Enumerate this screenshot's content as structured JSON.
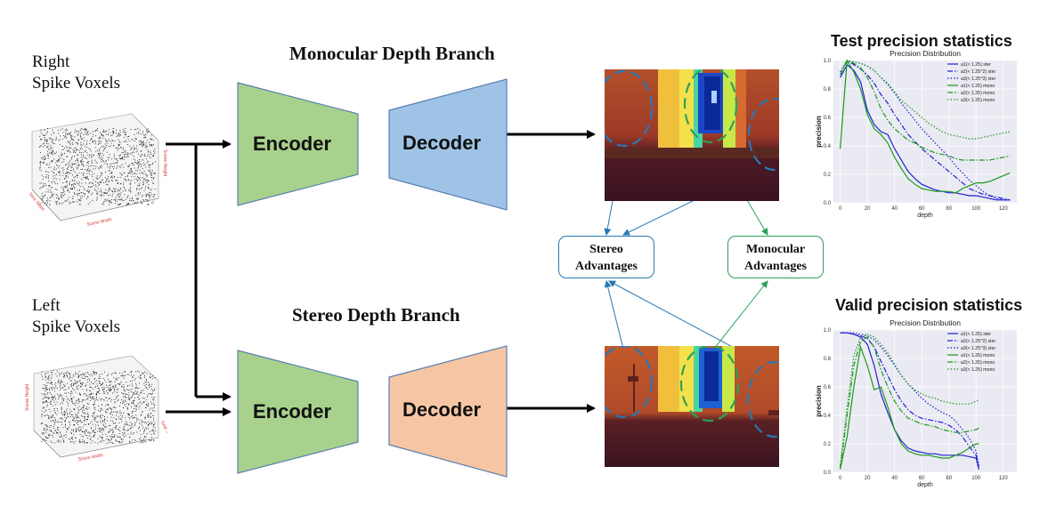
{
  "inputs": {
    "right": {
      "line1": "Right",
      "line2": "Spike Voxels"
    },
    "left": {
      "line1": "Left",
      "line2": "Spike Voxels"
    },
    "axis_labels": {
      "width": "Scene Width",
      "height": "Scene Height",
      "depth": "Time Steps"
    }
  },
  "monocular_branch": {
    "title": "Monocular Depth Branch",
    "encoder": "Encoder",
    "decoder": "Decoder",
    "encoder_color": "#a7d18c",
    "decoder_color": "#9ec3e6"
  },
  "stereo_branch": {
    "title": "Stereo Depth Branch",
    "encoder": "Encoder",
    "decoder": "Decoder",
    "encoder_color": "#a7d18c",
    "decoder_color": "#f6c6a4"
  },
  "advantages": {
    "stereo": {
      "line1": "Stereo",
      "line2": "Advantages",
      "color": "#2878b4"
    },
    "monocular": {
      "line1": "Monocular",
      "line2": "Advantages",
      "color": "#2ca05a"
    }
  },
  "plots": {
    "test_title": "Test precision statistics",
    "valid_title": "Valid precision statistics"
  },
  "chart_data": [
    {
      "type": "line",
      "title": "Precision Distribution",
      "xlabel": "depth",
      "ylabel": "precision",
      "xlim": [
        -5,
        130
      ],
      "ylim": [
        0,
        1.0
      ],
      "xticks": [
        0,
        20,
        40,
        60,
        80,
        100,
        120
      ],
      "yticks": [
        0.0,
        0.2,
        0.4,
        0.6,
        0.8,
        1.0
      ],
      "legend_position": "top-right",
      "x": [
        0,
        5,
        10,
        15,
        20,
        25,
        30,
        35,
        40,
        45,
        50,
        55,
        60,
        65,
        70,
        75,
        80,
        85,
        90,
        95,
        100,
        105,
        110,
        115,
        120,
        125
      ],
      "series": [
        {
          "name": "a1(< 1.25) ster",
          "color": "#1f1fd6",
          "style": "solid",
          "values": [
            0.88,
            0.97,
            0.93,
            0.85,
            0.65,
            0.55,
            0.5,
            0.48,
            0.38,
            0.3,
            0.22,
            0.17,
            0.13,
            0.11,
            0.09,
            0.08,
            0.07,
            0.07,
            0.06,
            0.05,
            0.05,
            0.04,
            0.03,
            0.02,
            0.02,
            0.02
          ]
        },
        {
          "name": "a2(< 1.25^2) ster",
          "color": "#1f1fd6",
          "style": "dashdot",
          "values": [
            0.9,
            1.0,
            0.97,
            0.94,
            0.9,
            0.84,
            0.76,
            0.7,
            0.62,
            0.55,
            0.48,
            0.43,
            0.38,
            0.34,
            0.3,
            0.26,
            0.22,
            0.18,
            0.14,
            0.1,
            0.08,
            0.06,
            0.05,
            0.04,
            0.03,
            0.02
          ]
        },
        {
          "name": "a3(< 1.25^3) ster",
          "color": "#1f1fd6",
          "style": "dotted",
          "values": [
            0.92,
            1.0,
            0.99,
            0.98,
            0.96,
            0.93,
            0.88,
            0.83,
            0.77,
            0.7,
            0.64,
            0.58,
            0.52,
            0.47,
            0.42,
            0.37,
            0.32,
            0.26,
            0.21,
            0.16,
            0.12,
            0.08,
            0.05,
            0.03,
            0.02,
            0.02
          ]
        },
        {
          "name": "a1(< 1.25) mono",
          "color": "#1a9a1a",
          "style": "solid",
          "values": [
            0.38,
            1.0,
            0.92,
            0.8,
            0.62,
            0.52,
            0.48,
            0.42,
            0.32,
            0.24,
            0.17,
            0.13,
            0.1,
            0.09,
            0.08,
            0.08,
            0.08,
            0.07,
            0.1,
            0.12,
            0.14,
            0.14,
            0.15,
            0.17,
            0.19,
            0.21
          ]
        },
        {
          "name": "a2(< 1.25) mono",
          "color": "#1a9a1a",
          "style": "dashdot",
          "values": [
            0.9,
            1.0,
            0.98,
            0.95,
            0.88,
            0.78,
            0.66,
            0.58,
            0.52,
            0.48,
            0.44,
            0.42,
            0.39,
            0.37,
            0.35,
            0.34,
            0.33,
            0.31,
            0.3,
            0.3,
            0.3,
            0.3,
            0.3,
            0.31,
            0.32,
            0.33
          ]
        },
        {
          "name": "a3(< 1.25) mono",
          "color": "#1a9a1a",
          "style": "dotted",
          "values": [
            0.92,
            1.0,
            0.99,
            0.98,
            0.96,
            0.93,
            0.88,
            0.84,
            0.78,
            0.72,
            0.68,
            0.64,
            0.6,
            0.56,
            0.53,
            0.5,
            0.48,
            0.47,
            0.46,
            0.45,
            0.45,
            0.46,
            0.47,
            0.48,
            0.49,
            0.5
          ]
        }
      ]
    },
    {
      "type": "line",
      "title": "Precision Distribution",
      "xlabel": "depth",
      "ylabel": "precision",
      "xlim": [
        -5,
        130
      ],
      "ylim": [
        0,
        1.0
      ],
      "xticks": [
        0,
        20,
        40,
        60,
        80,
        100,
        120
      ],
      "yticks": [
        0.0,
        0.2,
        0.4,
        0.6,
        0.8,
        1.0
      ],
      "legend_position": "top-right",
      "x": [
        0,
        5,
        10,
        15,
        20,
        25,
        30,
        35,
        40,
        45,
        50,
        55,
        60,
        65,
        70,
        75,
        80,
        85,
        90,
        95,
        100,
        102
      ],
      "series": [
        {
          "name": "a1(< 1.25) ster",
          "color": "#1f1fd6",
          "style": "solid",
          "values": [
            0.98,
            0.98,
            0.97,
            0.95,
            0.9,
            0.75,
            0.55,
            0.42,
            0.3,
            0.22,
            0.17,
            0.15,
            0.14,
            0.13,
            0.13,
            0.12,
            0.12,
            0.12,
            0.12,
            0.11,
            0.1,
            0.02
          ]
        },
        {
          "name": "a2(< 1.25^2) ster",
          "color": "#1f1fd6",
          "style": "dashdot",
          "values": [
            0.98,
            0.98,
            0.97,
            0.96,
            0.94,
            0.88,
            0.78,
            0.68,
            0.58,
            0.5,
            0.44,
            0.4,
            0.38,
            0.37,
            0.36,
            0.35,
            0.33,
            0.3,
            0.25,
            0.18,
            0.12,
            0.04
          ]
        },
        {
          "name": "a3(< 1.25^3) ster",
          "color": "#1f1fd6",
          "style": "dotted",
          "values": [
            0.98,
            0.98,
            0.98,
            0.97,
            0.96,
            0.93,
            0.88,
            0.82,
            0.75,
            0.68,
            0.62,
            0.57,
            0.52,
            0.48,
            0.45,
            0.42,
            0.4,
            0.36,
            0.3,
            0.24,
            0.15,
            0.05
          ]
        },
        {
          "name": "a1(< 1.25) mono",
          "color": "#1a9a1a",
          "style": "solid",
          "values": [
            0.02,
            0.25,
            0.6,
            0.88,
            0.75,
            0.58,
            0.6,
            0.46,
            0.3,
            0.2,
            0.15,
            0.13,
            0.12,
            0.12,
            0.11,
            0.1,
            0.1,
            0.12,
            0.14,
            0.17,
            0.2,
            0.2
          ]
        },
        {
          "name": "a2(< 1.25) mono",
          "color": "#1a9a1a",
          "style": "dashdot",
          "values": [
            0.03,
            0.4,
            0.75,
            0.92,
            0.95,
            0.88,
            0.72,
            0.6,
            0.5,
            0.43,
            0.38,
            0.36,
            0.34,
            0.33,
            0.32,
            0.3,
            0.29,
            0.28,
            0.28,
            0.29,
            0.3,
            0.31
          ]
        },
        {
          "name": "a3(< 1.25) mono",
          "color": "#1a9a1a",
          "style": "dotted",
          "values": [
            0.05,
            0.45,
            0.82,
            0.95,
            0.97,
            0.95,
            0.9,
            0.84,
            0.76,
            0.68,
            0.62,
            0.58,
            0.55,
            0.53,
            0.52,
            0.5,
            0.49,
            0.48,
            0.48,
            0.48,
            0.5,
            0.51
          ]
        }
      ]
    }
  ]
}
